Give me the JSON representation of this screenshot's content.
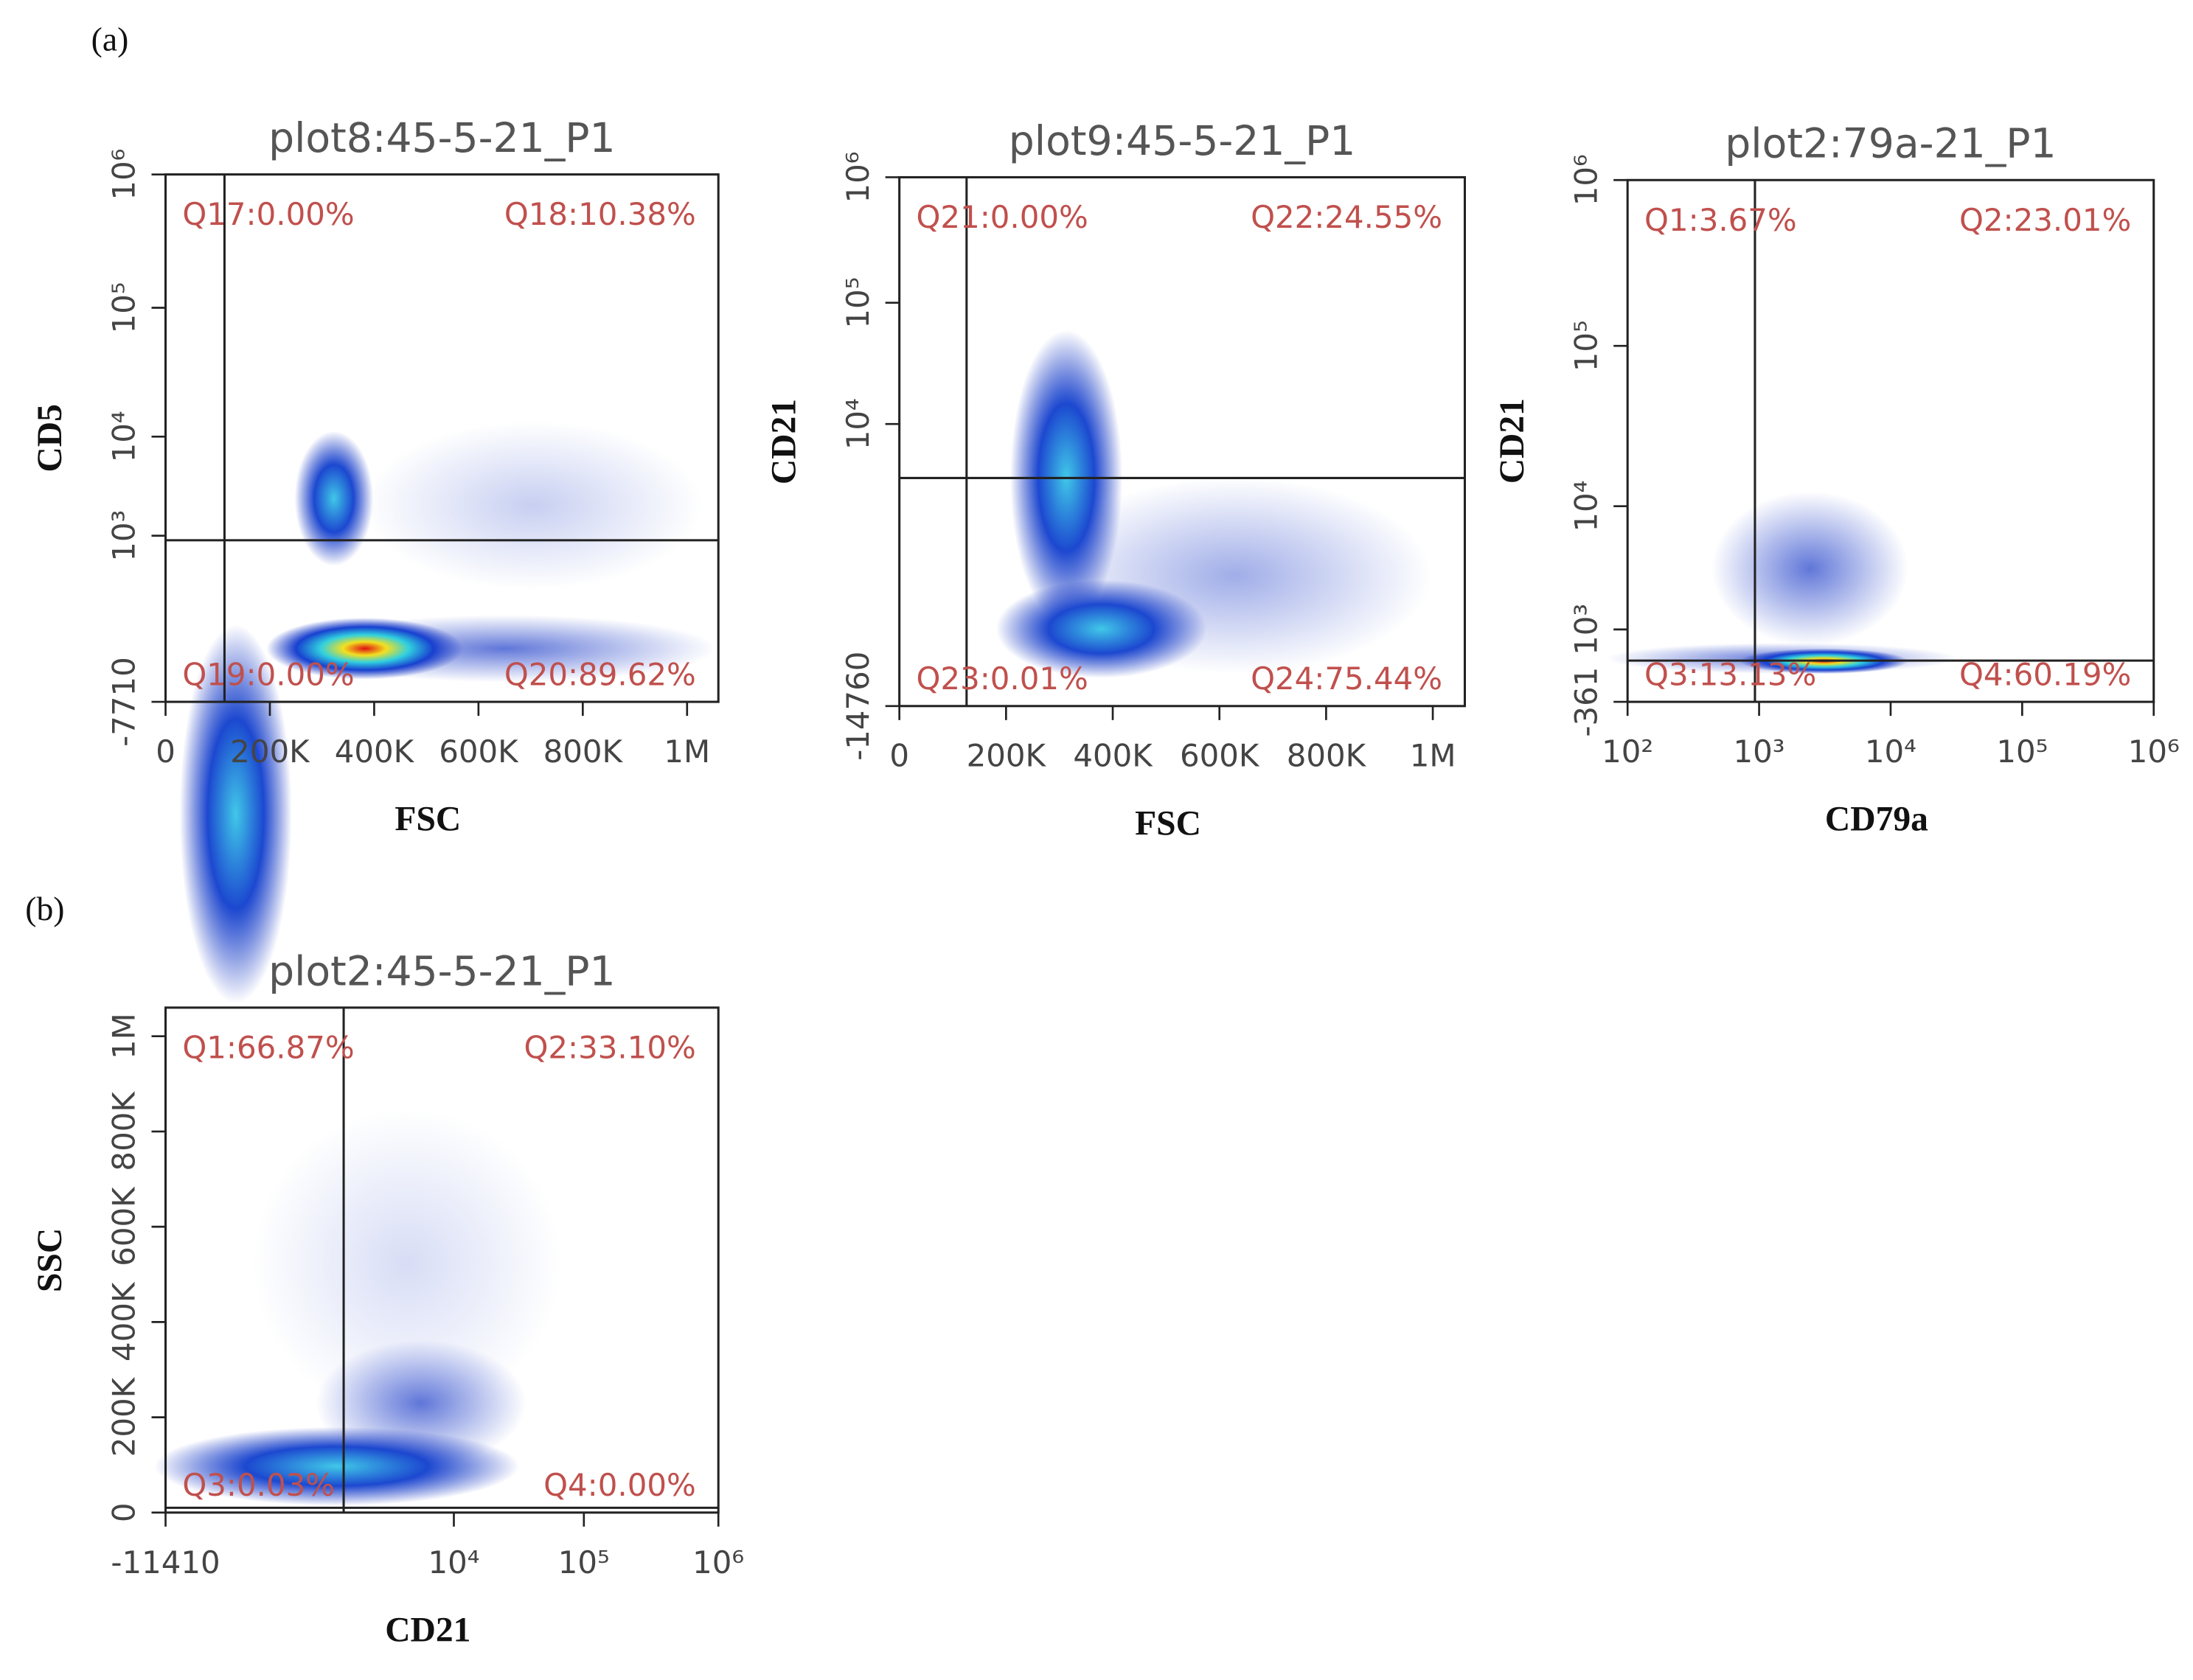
{
  "panel_labels": [
    "(a)",
    "(b)"
  ],
  "chart_data": [
    {
      "type": "scatter",
      "title": "plot8:45-5-21_P1",
      "xlabel": "FSC",
      "ylabel": "CD5",
      "xscale": "linear",
      "yscale": "biex",
      "xlim": [
        0,
        1060000
      ],
      "ylim": [
        -7710,
        1000000
      ],
      "xticks": [
        0,
        {
          "value": 200000,
          "label": "200K"
        },
        {
          "value": 400000,
          "label": "400K"
        },
        {
          "value": 600000,
          "label": "600K"
        },
        {
          "value": 800000,
          "label": "800K"
        },
        {
          "value": 1000000,
          "label": "1M"
        }
      ],
      "yticks": [
        -7710,
        {
          "value": 1000,
          "label": "10³"
        },
        {
          "value": 10000,
          "label": "10⁴"
        },
        {
          "value": 100000,
          "label": "10⁵"
        },
        {
          "value": 1000000,
          "label": "10⁶"
        }
      ],
      "gate": {
        "x": 113000,
        "y": 850
      },
      "quadrants": [
        "Q17:0.00%",
        "Q18:10.38%",
        "Q19:0.00%",
        "Q20:89.62%"
      ]
    },
    {
      "type": "scatter",
      "title": "plot9:45-5-21_P1",
      "xlabel": "FSC",
      "ylabel": "CD21",
      "xscale": "linear",
      "yscale": "biex",
      "xlim": [
        0,
        1060000
      ],
      "ylim": [
        -14760,
        1000000
      ],
      "xticks": [
        0,
        {
          "value": 200000,
          "label": "200K"
        },
        {
          "value": 400000,
          "label": "400K"
        },
        {
          "value": 600000,
          "label": "600K"
        },
        {
          "value": 800000,
          "label": "800K"
        },
        {
          "value": 1000000,
          "label": "1M"
        }
      ],
      "yticks": [
        -14760,
        {
          "value": 10000,
          "label": "10⁴"
        },
        {
          "value": 100000,
          "label": "10⁵"
        },
        {
          "value": 1000000,
          "label": "10⁶"
        }
      ],
      "gate": {
        "x": 126000,
        "y": 3100
      },
      "quadrants": [
        "Q21:0.00%",
        "Q22:24.55%",
        "Q23:0.01%",
        "Q24:75.44%"
      ]
    },
    {
      "type": "scatter",
      "title": "plot2:79a-21_P1",
      "xlabel": "CD79a",
      "ylabel": "CD21",
      "xscale": "log",
      "yscale": "biex",
      "xlim": [
        100,
        1000000
      ],
      "ylim": [
        -361,
        1000000
      ],
      "xticks": [
        {
          "value": 100,
          "label": "10²"
        },
        {
          "value": 1000,
          "label": "10³"
        },
        {
          "value": 10000,
          "label": "10⁴"
        },
        {
          "value": 100000,
          "label": "10⁵"
        },
        {
          "value": 1000000,
          "label": "10⁶"
        }
      ],
      "yticks": [
        -361,
        {
          "value": 1000,
          "label": "10³"
        },
        {
          "value": 10000,
          "label": "10⁴"
        },
        {
          "value": 100000,
          "label": "10⁵"
        },
        {
          "value": 1000000,
          "label": "10⁶"
        }
      ],
      "gate": {
        "x": 930,
        "y": 300
      },
      "quadrants": [
        "Q1:3.67%",
        "Q2:23.01%",
        "Q3:13.13%",
        "Q4:60.19%"
      ]
    },
    {
      "type": "scatter",
      "title": "plot2:45-5-21_P1",
      "xlabel": "CD21",
      "ylabel": "SSC",
      "xscale": "biex",
      "yscale": "linear",
      "xlim": [
        -11410,
        1000000
      ],
      "ylim": [
        0,
        1060000
      ],
      "xticks": [
        -11410,
        {
          "value": 10000,
          "label": "10⁴"
        },
        {
          "value": 100000,
          "label": "10⁵"
        },
        {
          "value": 1000000,
          "label": "10⁶"
        }
      ],
      "yticks": [
        0,
        {
          "value": 200000,
          "label": "200K"
        },
        {
          "value": 400000,
          "label": "400K"
        },
        {
          "value": 600000,
          "label": "600K"
        },
        {
          "value": 800000,
          "label": "800K"
        },
        {
          "value": 1000000,
          "label": "1M"
        }
      ],
      "gate": {
        "x": 680,
        "y": 10000
      },
      "quadrants": [
        "Q1:66.87%",
        "Q2:33.10%",
        "Q3:0.03%",
        "Q4:0.00%"
      ]
    }
  ]
}
